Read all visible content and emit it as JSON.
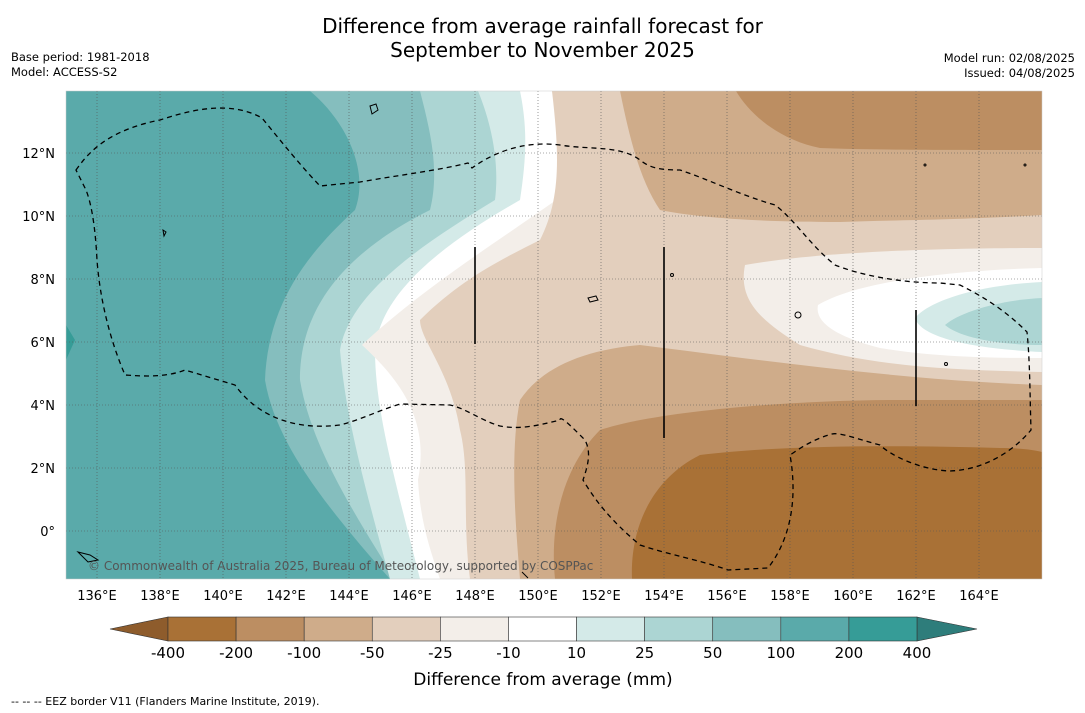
{
  "title_line1": "Difference from average rainfall forecast for",
  "title_line2": "September to November 2025",
  "meta_left": {
    "base_period": "Base period: 1981-2018",
    "model": "Model: ACCESS-S2"
  },
  "meta_right": {
    "model_run": "Model run: 02/08/2025",
    "issued": "Issued: 04/08/2025"
  },
  "map": {
    "lon_labels": [
      "136°E",
      "138°E",
      "140°E",
      "142°E",
      "144°E",
      "146°E",
      "148°E",
      "150°E",
      "152°E",
      "154°E",
      "156°E",
      "158°E",
      "160°E",
      "162°E",
      "164°E"
    ],
    "lat_labels": [
      "12°N",
      "10°N",
      "8°N",
      "6°N",
      "4°N",
      "2°N",
      "0°"
    ],
    "copyright": "© Commonwealth of Australia 2025, Bureau of Meteorology, supported by COSPPac"
  },
  "colorbar": {
    "tick_labels": [
      "-400",
      "-200",
      "-100",
      "-50",
      "-25",
      "-10",
      "10",
      "25",
      "50",
      "100",
      "200",
      "400"
    ],
    "colors": [
      "#a97136",
      "#bc8e62",
      "#cfac8a",
      "#e3cfbd",
      "#f3eee9",
      "#ffffff",
      "#d4eae8",
      "#acd5d3",
      "#85bebe",
      "#5aaaaa",
      "#369c97"
    ],
    "low_extension_color": "#8e5c2c",
    "high_extension_color": "#2e7d7b",
    "label": "Difference from average (mm)"
  },
  "legend_note": "--  --  -- EEZ border V11 (Flanders Marine Institute, 2019)."
}
